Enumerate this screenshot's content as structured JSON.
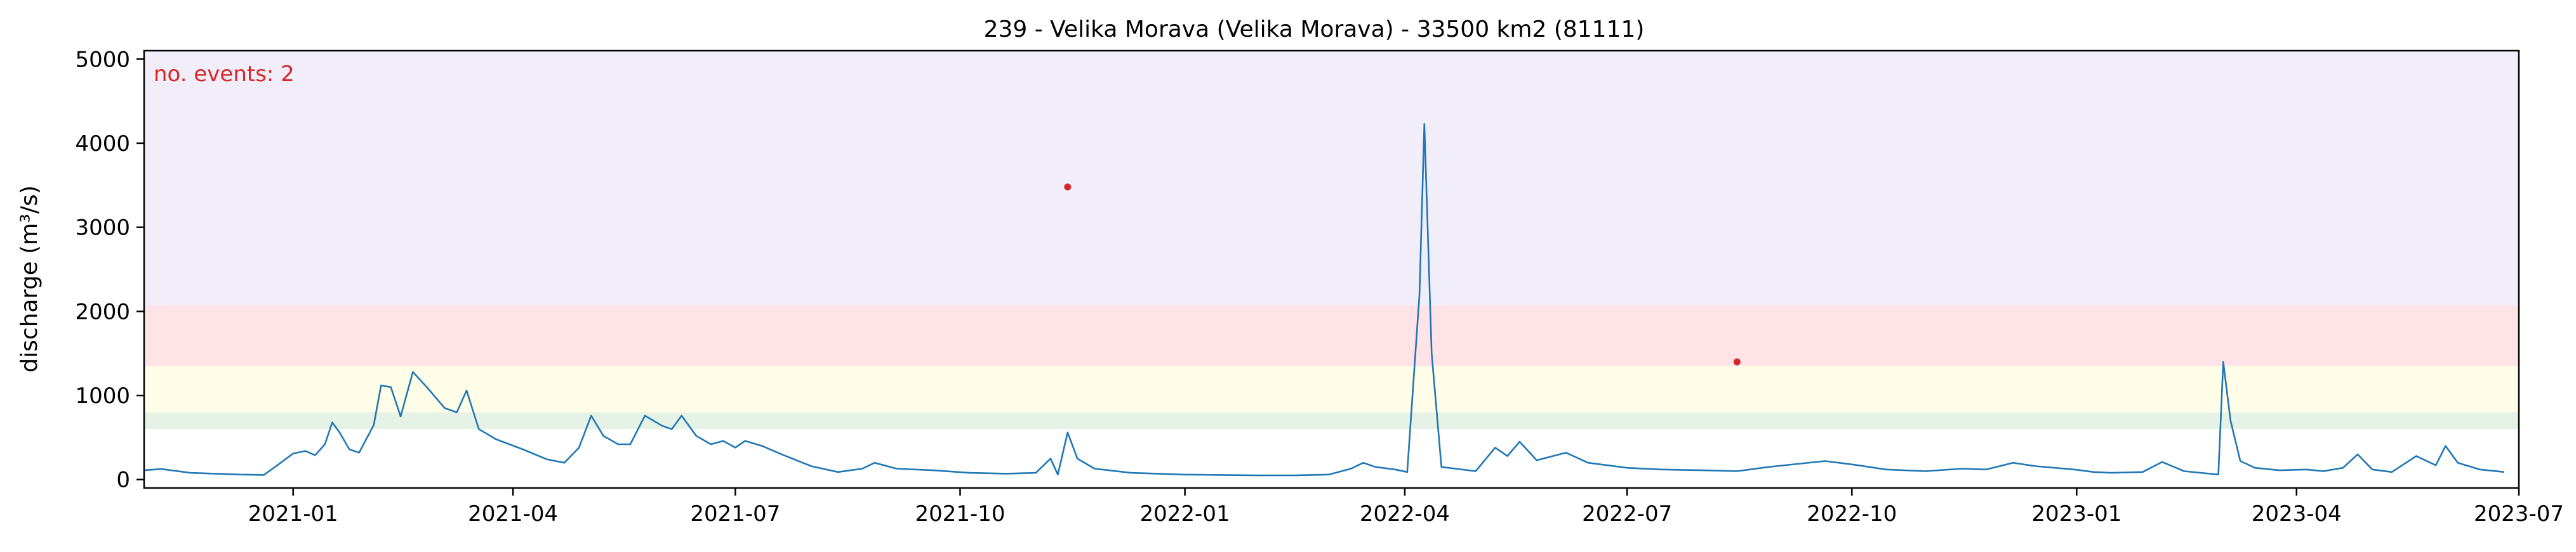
{
  "chart_data": {
    "type": "line",
    "title": "239 - Velika Morava (Velika Morava) - 33500 km2 (81111)",
    "xlabel": "",
    "ylabel": "discharge (m³/s)",
    "xlim": [
      "2020-11-01",
      "2023-07-01"
    ],
    "ylim": [
      -100,
      5100
    ],
    "x_ticks": [
      "2021-01",
      "2021-04",
      "2021-07",
      "2021-10",
      "2022-01",
      "2022-04",
      "2022-07",
      "2022-10",
      "2023-01",
      "2023-04",
      "2023-07"
    ],
    "y_ticks": [
      0,
      1000,
      2000,
      3000,
      4000,
      5000
    ],
    "grid": false,
    "annotation": {
      "text": "no. events: 2",
      "color": "#d62728",
      "position": "top-left"
    },
    "bands": [
      {
        "from": 600,
        "to": 800,
        "color": "#e6f2e6"
      },
      {
        "from": 800,
        "to": 1350,
        "color": "#fffde8"
      },
      {
        "from": 1350,
        "to": 2070,
        "color": "#ffe3e6"
      },
      {
        "from": 2070,
        "to": 5100,
        "color": "#f1eefa"
      }
    ],
    "series": [
      {
        "color": "#1f77b4",
        "points": [
          [
            "2020-11-01",
            110
          ],
          [
            "2020-11-08",
            125
          ],
          [
            "2020-11-20",
            80
          ],
          [
            "2020-12-10",
            60
          ],
          [
            "2020-12-20",
            55
          ],
          [
            "2020-12-26",
            180
          ],
          [
            "2021-01-01",
            310
          ],
          [
            "2021-01-06",
            340
          ],
          [
            "2021-01-10",
            290
          ],
          [
            "2021-01-14",
            420
          ],
          [
            "2021-01-17",
            680
          ],
          [
            "2021-01-20",
            560
          ],
          [
            "2021-01-24",
            360
          ],
          [
            "2021-01-28",
            320
          ],
          [
            "2021-02-03",
            650
          ],
          [
            "2021-02-06",
            1120
          ],
          [
            "2021-02-10",
            1100
          ],
          [
            "2021-02-14",
            750
          ],
          [
            "2021-02-19",
            1280
          ],
          [
            "2021-02-25",
            1090
          ],
          [
            "2021-03-04",
            850
          ],
          [
            "2021-03-09",
            800
          ],
          [
            "2021-03-13",
            1060
          ],
          [
            "2021-03-18",
            600
          ],
          [
            "2021-03-25",
            480
          ],
          [
            "2021-04-05",
            360
          ],
          [
            "2021-04-15",
            240
          ],
          [
            "2021-04-22",
            200
          ],
          [
            "2021-04-28",
            380
          ],
          [
            "2021-05-03",
            760
          ],
          [
            "2021-05-08",
            520
          ],
          [
            "2021-05-14",
            420
          ],
          [
            "2021-05-19",
            420
          ],
          [
            "2021-05-25",
            760
          ],
          [
            "2021-06-01",
            640
          ],
          [
            "2021-06-05",
            600
          ],
          [
            "2021-06-09",
            760
          ],
          [
            "2021-06-15",
            520
          ],
          [
            "2021-06-21",
            420
          ],
          [
            "2021-06-26",
            460
          ],
          [
            "2021-07-01",
            380
          ],
          [
            "2021-07-05",
            460
          ],
          [
            "2021-07-12",
            400
          ],
          [
            "2021-07-20",
            300
          ],
          [
            "2021-08-01",
            160
          ],
          [
            "2021-08-12",
            90
          ],
          [
            "2021-08-22",
            130
          ],
          [
            "2021-08-27",
            200
          ],
          [
            "2021-09-05",
            130
          ],
          [
            "2021-09-20",
            110
          ],
          [
            "2021-10-05",
            80
          ],
          [
            "2021-10-20",
            70
          ],
          [
            "2021-11-01",
            80
          ],
          [
            "2021-11-07",
            250
          ],
          [
            "2021-11-10",
            60
          ],
          [
            "2021-11-14",
            560
          ],
          [
            "2021-11-18",
            250
          ],
          [
            "2021-11-25",
            130
          ],
          [
            "2021-12-10",
            80
          ],
          [
            "2021-12-31",
            60
          ],
          [
            "2022-01-15",
            55
          ],
          [
            "2022-01-31",
            50
          ],
          [
            "2022-02-15",
            50
          ],
          [
            "2022-03-01",
            60
          ],
          [
            "2022-03-10",
            130
          ],
          [
            "2022-03-15",
            200
          ],
          [
            "2022-03-20",
            150
          ],
          [
            "2022-03-28",
            120
          ],
          [
            "2022-04-02",
            90
          ],
          [
            "2022-04-07",
            2200
          ],
          [
            "2022-04-09",
            4230
          ],
          [
            "2022-04-12",
            1500
          ],
          [
            "2022-04-16",
            150
          ],
          [
            "2022-04-30",
            100
          ],
          [
            "2022-05-08",
            380
          ],
          [
            "2022-05-13",
            280
          ],
          [
            "2022-05-18",
            450
          ],
          [
            "2022-05-25",
            230
          ],
          [
            "2022-06-06",
            320
          ],
          [
            "2022-06-15",
            200
          ],
          [
            "2022-07-01",
            140
          ],
          [
            "2022-07-15",
            120
          ],
          [
            "2022-08-01",
            110
          ],
          [
            "2022-08-15",
            100
          ],
          [
            "2022-08-28",
            150
          ],
          [
            "2022-09-10",
            190
          ],
          [
            "2022-09-20",
            220
          ],
          [
            "2022-10-01",
            180
          ],
          [
            "2022-10-15",
            120
          ],
          [
            "2022-10-31",
            100
          ],
          [
            "2022-11-15",
            130
          ],
          [
            "2022-11-25",
            120
          ],
          [
            "2022-12-06",
            200
          ],
          [
            "2022-12-15",
            160
          ],
          [
            "2022-12-31",
            120
          ],
          [
            "2023-01-08",
            90
          ],
          [
            "2023-01-15",
            80
          ],
          [
            "2023-01-28",
            90
          ],
          [
            "2023-02-05",
            210
          ],
          [
            "2023-02-14",
            100
          ],
          [
            "2023-02-28",
            60
          ],
          [
            "2023-03-02",
            1400
          ],
          [
            "2023-03-05",
            700
          ],
          [
            "2023-03-09",
            220
          ],
          [
            "2023-03-15",
            140
          ],
          [
            "2023-03-25",
            110
          ],
          [
            "2023-04-05",
            120
          ],
          [
            "2023-04-12",
            100
          ],
          [
            "2023-04-20",
            140
          ],
          [
            "2023-04-26",
            300
          ],
          [
            "2023-05-02",
            120
          ],
          [
            "2023-05-10",
            90
          ],
          [
            "2023-05-20",
            280
          ],
          [
            "2023-05-28",
            170
          ],
          [
            "2023-06-01",
            400
          ],
          [
            "2023-06-06",
            200
          ],
          [
            "2023-06-15",
            120
          ],
          [
            "2023-06-25",
            90
          ]
        ]
      }
    ],
    "events": [
      {
        "x": "2021-11-14",
        "y": 3480
      },
      {
        "x": "2022-08-15",
        "y": 1400
      }
    ]
  }
}
